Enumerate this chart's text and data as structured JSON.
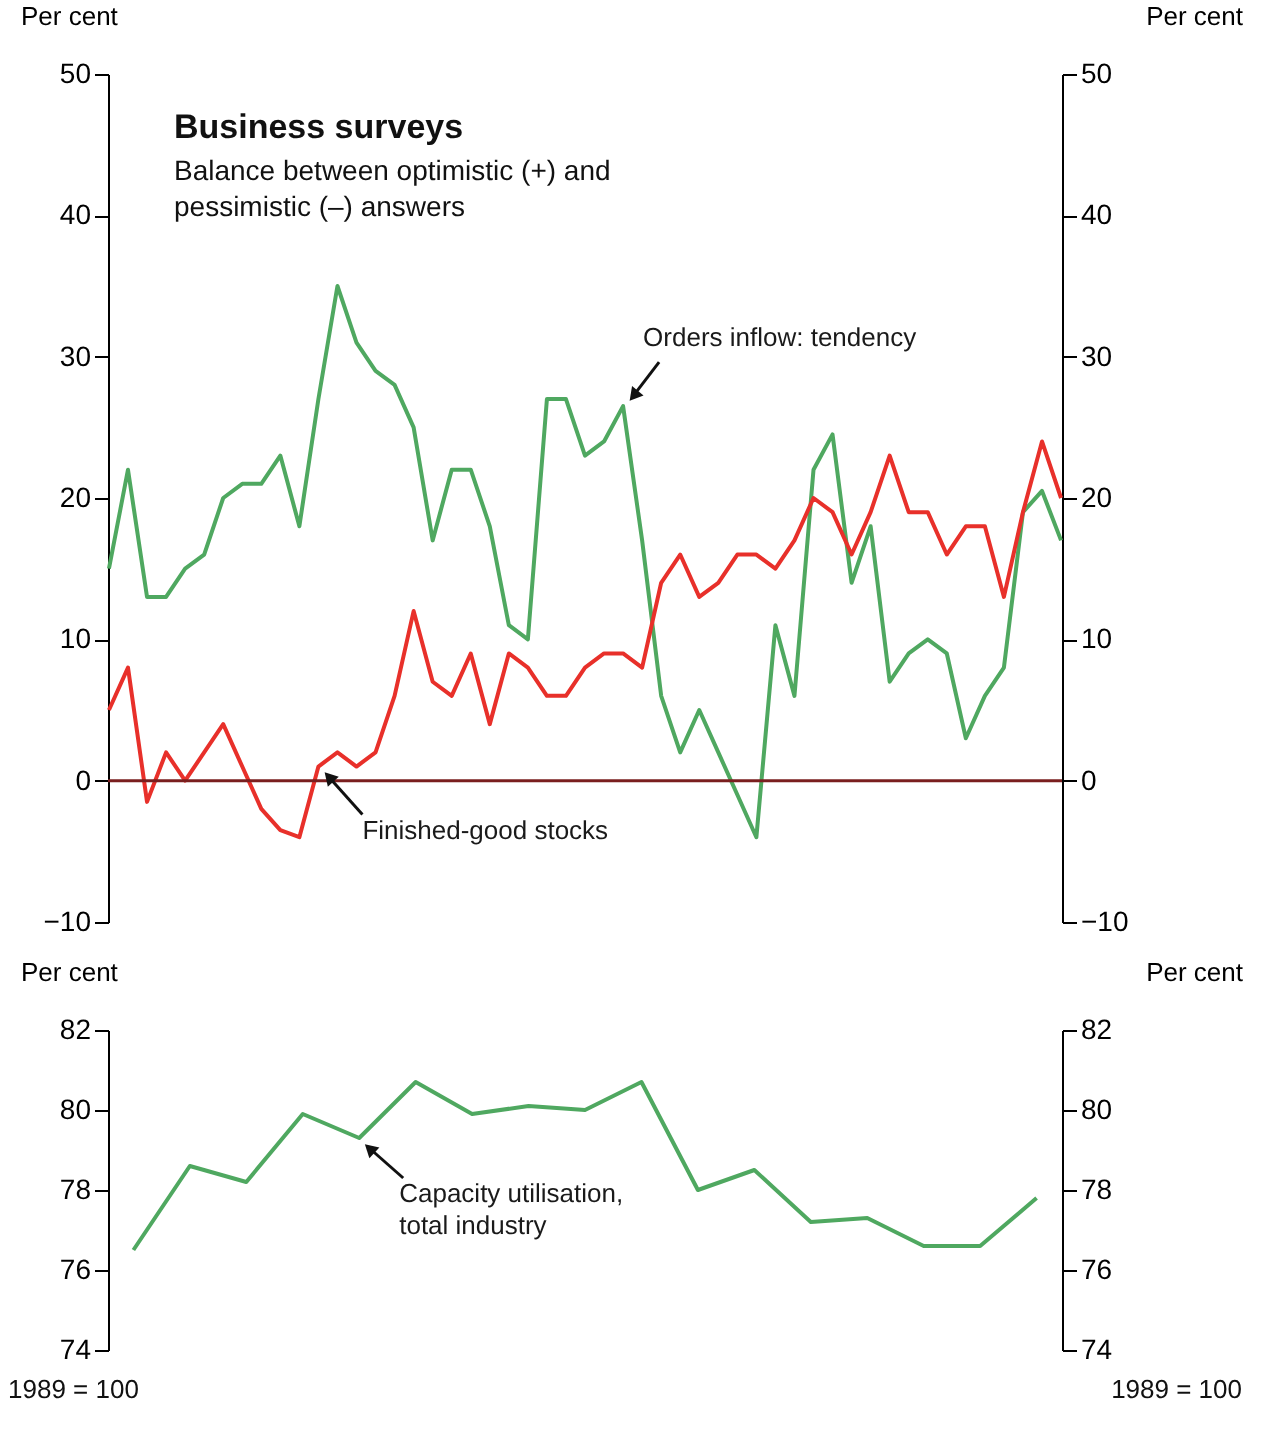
{
  "chart_data": [
    {
      "type": "line",
      "title": "Business surveys",
      "subtitle": "Balance between optimistic (+) and pessimistic (–) answers",
      "ylabel": "Per cent",
      "y2label": "Per cent",
      "categories": [
        null,
        null,
        null,
        null,
        null,
        null,
        null,
        null,
        null,
        null,
        null,
        null,
        null,
        null,
        null,
        null,
        null,
        null,
        null,
        null,
        null,
        null,
        null,
        null,
        null,
        null,
        null,
        null,
        null,
        null,
        null,
        null,
        null,
        null,
        null,
        null,
        null,
        null,
        null,
        null,
        null,
        null,
        null,
        null,
        null,
        null,
        null,
        null,
        null,
        null,
        null
      ],
      "series": [
        {
          "name": "Orders inflow: tendency",
          "color": "#4fa860",
          "values": [
            15,
            22,
            13,
            13,
            15,
            16,
            20,
            21,
            21,
            23,
            18,
            27,
            35,
            31,
            29,
            28,
            25,
            17,
            22,
            22,
            18,
            11,
            10,
            27,
            27,
            23,
            24,
            26.5,
            17,
            6,
            2,
            5,
            2,
            -1,
            -4,
            11,
            6,
            22,
            24.5,
            14,
            18,
            7,
            9,
            10,
            9,
            3,
            6,
            8,
            19,
            20.5,
            17
          ]
        },
        {
          "name": "Finished-good stocks",
          "color": "#e8302a",
          "values": [
            5,
            8,
            -1.5,
            2,
            0,
            2,
            4,
            1,
            -2,
            -3.5,
            -4,
            1,
            2,
            1,
            2,
            6,
            12,
            7,
            6,
            9,
            4,
            9,
            8,
            6,
            6,
            8,
            9,
            9,
            8,
            14,
            16,
            13,
            14,
            16,
            16,
            15,
            17,
            20,
            19,
            16,
            19,
            23,
            19,
            19,
            16,
            18,
            18,
            13,
            19,
            24,
            20
          ]
        }
      ],
      "ylim": [
        -10,
        50
      ],
      "yticks": [
        -10,
        0,
        10,
        20,
        30,
        40,
        50
      ],
      "y2lim": [
        -10,
        50
      ],
      "y2ticks": [
        -10,
        0,
        10,
        20,
        30,
        40,
        50
      ],
      "ref_lines": [
        {
          "axis": "y",
          "value": 0,
          "color": "#7a1f1f"
        }
      ],
      "tick_labels": "y",
      "grid": false,
      "legend": false
    },
    {
      "type": "line",
      "ylabel": "Per cent",
      "y2label": "Per cent",
      "categories": [
        null,
        null,
        null,
        null,
        null,
        null,
        null,
        null,
        null,
        null,
        null,
        null,
        null,
        null,
        null,
        null,
        null
      ],
      "series": [
        {
          "name": "Capacity utilisation, total industry",
          "color": "#4fa860",
          "values": [
            76.5,
            78.6,
            78.2,
            79.9,
            79.3,
            80.7,
            79.9,
            80.1,
            80.0,
            80.7,
            78.0,
            78.5,
            77.2,
            77.3,
            76.6,
            76.6,
            77.8
          ]
        }
      ],
      "ylim": [
        74,
        82
      ],
      "yticks": [
        74,
        76,
        78,
        80,
        82
      ],
      "y2lim": [
        74,
        82
      ],
      "y2ticks": [
        74,
        76,
        78,
        80,
        82
      ],
      "annotations": [
        "1989 = 100",
        "1989 = 100"
      ],
      "tick_labels": "y",
      "grid": false,
      "legend": false
    }
  ]
}
